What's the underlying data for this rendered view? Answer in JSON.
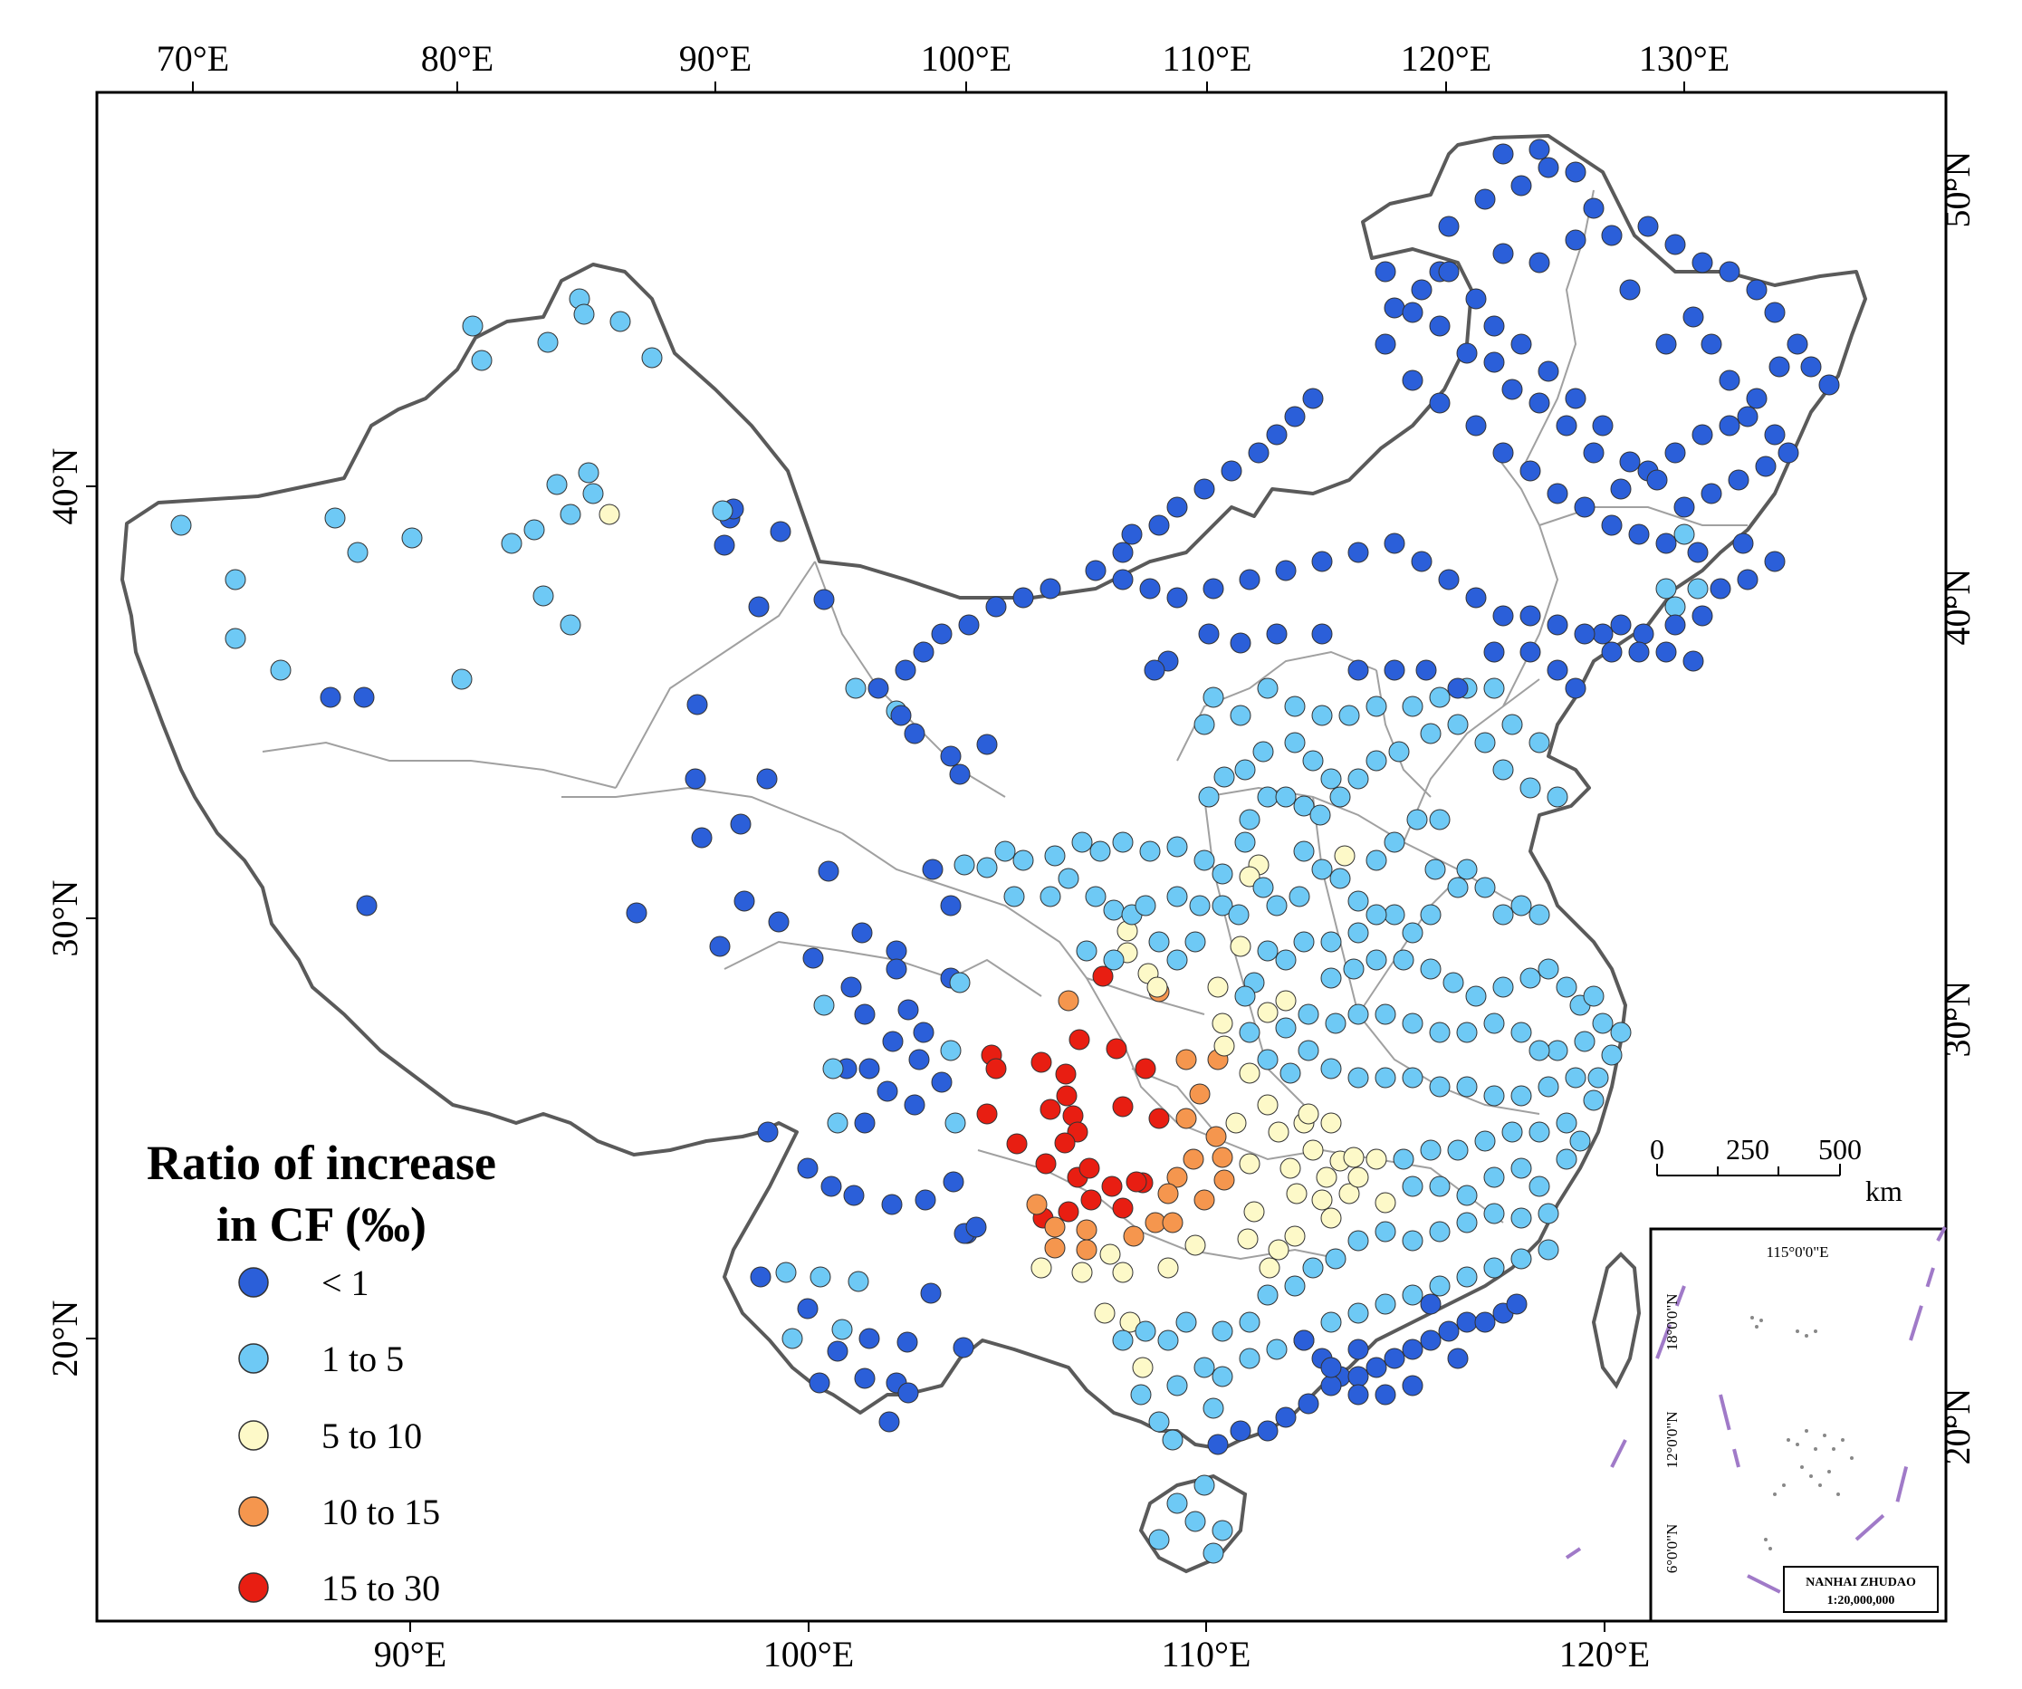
{
  "map": {
    "axes": {
      "top_labels": [
        "70°E",
        "80°E",
        "90°E",
        "100°E",
        "110°E",
        "120°E",
        "130°E"
      ],
      "bottom_labels": [
        "90°E",
        "100°E",
        "110°E",
        "120°E"
      ],
      "left_labels": [
        "40°N",
        "30°N",
        "20°N"
      ],
      "right_labels": [
        "50°N",
        "40°N",
        "30°N",
        "20°N"
      ]
    },
    "legend": {
      "title_line1": "Ratio of increase",
      "title_line2": "in CF (‰)",
      "items": [
        {
          "label": "< 1",
          "color": "#2b5fd9"
        },
        {
          "label": "1 to 5",
          "color": "#6ec9f5"
        },
        {
          "label": "5 to 10",
          "color": "#fdf9c8"
        },
        {
          "label": "10 to 15",
          "color": "#f5964e"
        },
        {
          "label": "15 to 30",
          "color": "#e81e12"
        }
      ]
    },
    "scale_bar": {
      "ticks": [
        "0",
        "250",
        "500"
      ],
      "unit": "km"
    },
    "inset": {
      "lon_label": "115°0'0\"E",
      "lat_labels": [
        "18°0'0\"N",
        "12°0'0\"N",
        "6°0'0\"N"
      ],
      "name": "NANHAI ZHUDAO",
      "scale": "1:20,000,000"
    },
    "colors": {
      "border": "#5a5a5a",
      "province": "#a0a0a0",
      "class_lt1": "#2b5fd9",
      "class_1_5": "#6ec9f5",
      "class_5_10": "#fdf9c8",
      "class_10_15": "#f5964e",
      "class_15_30": "#e81e12",
      "nine_dash": "#a07ac8"
    }
  }
}
